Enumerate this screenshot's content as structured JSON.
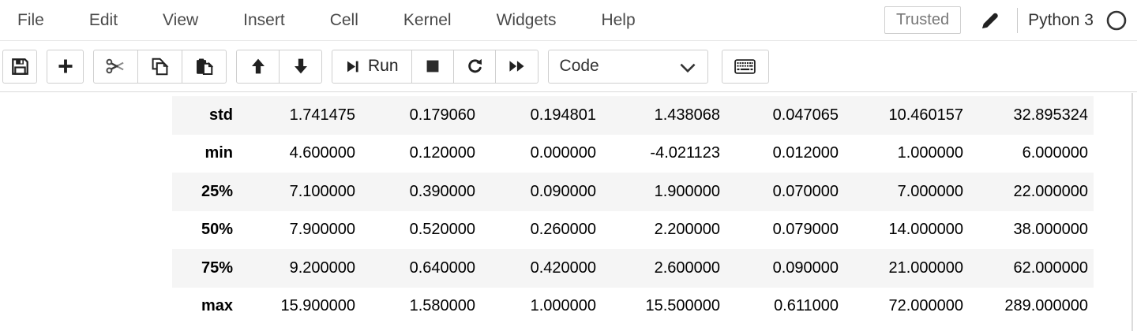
{
  "menu": {
    "items": [
      "File",
      "Edit",
      "View",
      "Insert",
      "Cell",
      "Kernel",
      "Widgets",
      "Help"
    ],
    "trusted_label": "Trusted",
    "kernel_name": "Python 3"
  },
  "toolbar": {
    "run_label": "Run",
    "cell_type": "Code",
    "icons": [
      "save",
      "add-cell",
      "cut",
      "copy",
      "paste",
      "move-up",
      "move-down",
      "step-forward",
      "stop",
      "restart",
      "fast-forward",
      "keyboard"
    ]
  },
  "colors": {
    "menu_text": "#4a4a4a",
    "button_border": "#cfcfcf",
    "stripe": "#f5f5f5",
    "icon": "#212121"
  },
  "table": {
    "rows": [
      {
        "label": "std",
        "values": [
          "1.741475",
          "0.179060",
          "0.194801",
          "1.438068",
          "0.047065",
          "10.460157",
          "32.895324"
        ]
      },
      {
        "label": "min",
        "values": [
          "4.600000",
          "0.120000",
          "0.000000",
          "-4.021123",
          "0.012000",
          "1.000000",
          "6.000000"
        ]
      },
      {
        "label": "25%",
        "values": [
          "7.100000",
          "0.390000",
          "0.090000",
          "1.900000",
          "0.070000",
          "7.000000",
          "22.000000"
        ]
      },
      {
        "label": "50%",
        "values": [
          "7.900000",
          "0.520000",
          "0.260000",
          "2.200000",
          "0.079000",
          "14.000000",
          "38.000000"
        ]
      },
      {
        "label": "75%",
        "values": [
          "9.200000",
          "0.640000",
          "0.420000",
          "2.600000",
          "0.090000",
          "21.000000",
          "62.000000"
        ]
      },
      {
        "label": "max",
        "values": [
          "15.900000",
          "1.580000",
          "1.000000",
          "15.500000",
          "0.611000",
          "72.000000",
          "289.000000"
        ]
      }
    ]
  }
}
